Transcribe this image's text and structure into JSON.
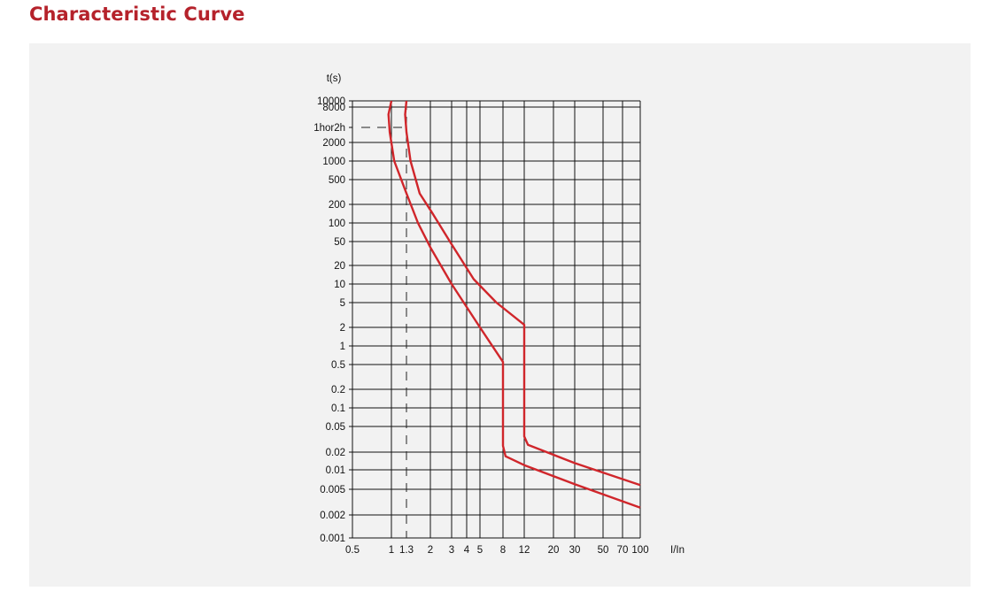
{
  "page": {
    "title": "Characteristic Curve"
  },
  "colors": {
    "title": "#b5222b",
    "curve": "#d0262b",
    "panel": "#f2f2f2",
    "grid": "#111111"
  },
  "chart_data": {
    "type": "line",
    "title": "",
    "xlabel": "I/In",
    "ylabel": "t(s)",
    "x_scale": "log",
    "y_scale": "log",
    "xlim": [
      0.5,
      100
    ],
    "ylim": [
      0.001,
      10000
    ],
    "grid": true,
    "x_ticks": [
      {
        "value": 0.5,
        "label": "0.5"
      },
      {
        "value": 1,
        "label": "1"
      },
      {
        "value": 1.3,
        "label": "1.3"
      },
      {
        "value": 2,
        "label": "2"
      },
      {
        "value": 3,
        "label": "3"
      },
      {
        "value": 4,
        "label": "4"
      },
      {
        "value": 5,
        "label": "5"
      },
      {
        "value": 8,
        "label": "8"
      },
      {
        "value": 12,
        "label": "12"
      },
      {
        "value": 20,
        "label": "20"
      },
      {
        "value": 30,
        "label": "30"
      },
      {
        "value": 50,
        "label": "50"
      },
      {
        "value": 70,
        "label": "70"
      },
      {
        "value": 100,
        "label": "100"
      }
    ],
    "y_ticks": [
      {
        "value": 10000,
        "label": "10000"
      },
      {
        "value": 8000,
        "label": "8000"
      },
      {
        "value": 3600,
        "label": "1hor2h"
      },
      {
        "value": 2000,
        "label": "2000"
      },
      {
        "value": 1000,
        "label": "1000"
      },
      {
        "value": 500,
        "label": "500"
      },
      {
        "value": 200,
        "label": "200"
      },
      {
        "value": 100,
        "label": "100"
      },
      {
        "value": 50,
        "label": "50"
      },
      {
        "value": 20,
        "label": "20"
      },
      {
        "value": 10,
        "label": "10"
      },
      {
        "value": 5,
        "label": "5"
      },
      {
        "value": 2,
        "label": "2"
      },
      {
        "value": 1,
        "label": "1"
      },
      {
        "value": 0.5,
        "label": "0.5"
      },
      {
        "value": 0.2,
        "label": "0.2"
      },
      {
        "value": 0.1,
        "label": "0.1"
      },
      {
        "value": 0.05,
        "label": "0.05"
      },
      {
        "value": 0.02,
        "label": "0.02"
      },
      {
        "value": 0.01,
        "label": "0.01"
      },
      {
        "value": 0.005,
        "label": "0.005"
      },
      {
        "value": 0.002,
        "label": "0.002"
      },
      {
        "value": 0.001,
        "label": "0.001"
      }
    ],
    "series": [
      {
        "points": [
          [
            1.0,
            10000
          ],
          [
            0.95,
            6000
          ],
          [
            0.97,
            3000
          ],
          [
            1.05,
            1000
          ],
          [
            1.3,
            300
          ],
          [
            1.6,
            100
          ],
          [
            2.0,
            40
          ],
          [
            3.0,
            10
          ],
          [
            5.0,
            2
          ],
          [
            8.0,
            0.55
          ],
          [
            8.0,
            0.025
          ],
          [
            8.4,
            0.017
          ],
          [
            12.0,
            0.012
          ],
          [
            30.0,
            0.006
          ],
          [
            100.0,
            0.0026
          ]
        ]
      },
      {
        "points": [
          [
            1.3,
            10000
          ],
          [
            1.27,
            6000
          ],
          [
            1.3,
            3000
          ],
          [
            1.4,
            1000
          ],
          [
            1.65,
            300
          ],
          [
            2.05,
            150
          ],
          [
            3.0,
            45
          ],
          [
            4.5,
            12
          ],
          [
            7.0,
            5
          ],
          [
            12.0,
            2.2
          ],
          [
            12.0,
            0.035
          ],
          [
            12.8,
            0.026
          ],
          [
            30.0,
            0.013
          ],
          [
            100.0,
            0.0058
          ]
        ]
      }
    ],
    "annotations": [
      {
        "type": "dashed-guide",
        "x": 1.3,
        "y": 3600
      }
    ]
  }
}
